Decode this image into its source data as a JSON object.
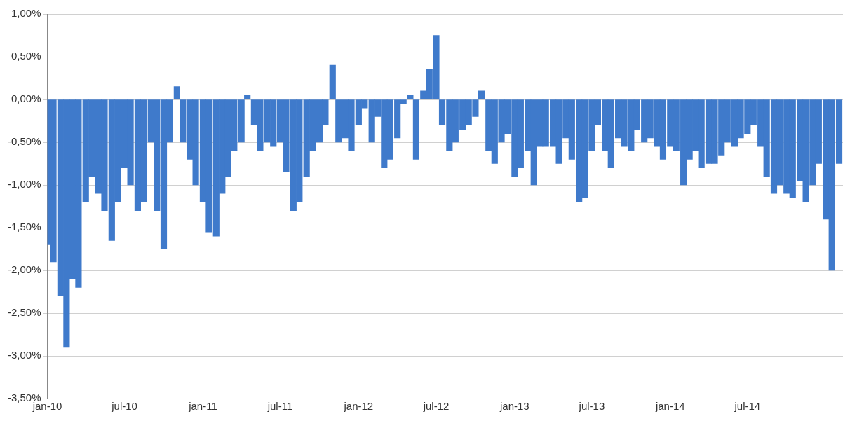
{
  "chart_data": {
    "type": "bar",
    "color": "#3f7acb",
    "x": [
      "2010-01-01",
      "2010-01-15",
      "2010-02-01",
      "2010-02-15",
      "2010-03-01",
      "2010-03-15",
      "2010-04-01",
      "2010-04-15",
      "2010-05-01",
      "2010-05-15",
      "2010-06-01",
      "2010-06-15",
      "2010-07-01",
      "2010-07-15",
      "2010-08-01",
      "2010-08-15",
      "2010-09-01",
      "2010-09-15",
      "2010-10-01",
      "2010-10-15",
      "2010-11-01",
      "2010-11-15",
      "2010-12-01",
      "2010-12-15",
      "2011-01-01",
      "2011-01-15",
      "2011-02-01",
      "2011-02-15",
      "2011-03-01",
      "2011-03-15",
      "2011-04-01",
      "2011-04-15",
      "2011-05-01",
      "2011-05-15",
      "2011-06-01",
      "2011-06-15",
      "2011-07-01",
      "2011-07-15",
      "2011-08-01",
      "2011-08-15",
      "2011-09-01",
      "2011-09-15",
      "2011-10-01",
      "2011-10-15",
      "2011-11-01",
      "2011-11-15",
      "2011-12-01",
      "2011-12-15",
      "2012-01-01",
      "2012-01-15",
      "2012-02-01",
      "2012-02-15",
      "2012-03-01",
      "2012-03-15",
      "2012-04-01",
      "2012-04-15",
      "2012-05-01",
      "2012-05-15",
      "2012-06-01",
      "2012-06-15",
      "2012-07-01",
      "2012-07-15",
      "2012-08-01",
      "2012-08-15",
      "2012-09-01",
      "2012-09-15",
      "2012-10-01",
      "2012-10-15",
      "2012-11-01",
      "2012-11-15",
      "2012-12-01",
      "2012-12-15",
      "2013-01-01",
      "2013-01-15",
      "2013-02-01",
      "2013-02-15",
      "2013-03-01",
      "2013-03-15",
      "2013-04-01",
      "2013-04-15",
      "2013-05-01",
      "2013-05-15",
      "2013-06-01",
      "2013-06-15",
      "2013-07-01",
      "2013-07-15",
      "2013-08-01",
      "2013-08-15",
      "2013-09-01",
      "2013-09-15",
      "2013-10-01",
      "2013-10-15",
      "2013-11-01",
      "2013-11-15",
      "2013-12-01",
      "2013-12-15",
      "2014-01-01",
      "2014-01-15",
      "2014-02-01",
      "2014-02-15",
      "2014-03-01",
      "2014-03-15",
      "2014-04-01",
      "2014-04-15",
      "2014-05-01",
      "2014-05-15",
      "2014-06-01",
      "2014-06-15",
      "2014-07-01",
      "2014-07-15",
      "2014-08-01",
      "2014-08-15",
      "2014-09-01",
      "2014-09-15",
      "2014-10-01",
      "2014-10-15",
      "2014-11-01",
      "2014-11-15",
      "2014-12-01",
      "2014-12-15",
      "2015-01-01",
      "2015-01-15",
      "2015-02-01"
    ],
    "values": [
      -1.7,
      -1.9,
      -2.3,
      -2.9,
      -2.1,
      -2.2,
      -1.2,
      -0.9,
      -1.1,
      -1.3,
      -1.65,
      -1.2,
      -0.8,
      -1.0,
      -1.3,
      -1.2,
      -0.5,
      -1.3,
      -1.75,
      -0.5,
      0.15,
      -0.5,
      -0.7,
      -1.0,
      -1.2,
      -1.55,
      -1.6,
      -1.1,
      -0.9,
      -0.6,
      -0.5,
      0.05,
      -0.3,
      -0.6,
      -0.5,
      -0.55,
      -0.5,
      -0.85,
      -1.3,
      -1.2,
      -0.9,
      -0.6,
      -0.5,
      -0.3,
      0.4,
      -0.5,
      -0.45,
      -0.6,
      -0.3,
      -0.1,
      -0.5,
      -0.2,
      -0.8,
      -0.7,
      -0.45,
      -0.05,
      0.05,
      -0.7,
      0.1,
      0.35,
      0.75,
      -0.3,
      -0.6,
      -0.5,
      -0.35,
      -0.3,
      -0.2,
      0.1,
      -0.6,
      -0.75,
      -0.5,
      -0.4,
      -0.9,
      -0.8,
      -0.6,
      -1.0,
      -0.55,
      -0.55,
      -0.55,
      -0.75,
      -0.45,
      -0.7,
      -1.2,
      -1.15,
      -0.6,
      -0.3,
      -0.6,
      -0.8,
      -0.45,
      -0.55,
      -0.6,
      -0.35,
      -0.5,
      -0.45,
      -0.55,
      -0.7,
      -0.55,
      -0.6,
      -1.0,
      -0.7,
      -0.6,
      -0.8,
      -0.75,
      -0.75,
      -0.65,
      -0.5,
      -0.55,
      -0.45,
      -0.4,
      -0.3,
      -0.55,
      -0.9,
      -1.1,
      -1.0,
      -1.1,
      -1.15,
      -0.95,
      -1.2,
      -1.0,
      -0.75,
      -1.4,
      -2.0,
      -0.75
    ],
    "xlim": [
      "2010-01-01",
      "2015-02-10"
    ],
    "xticks": [
      {
        "value": "2010-01-01",
        "label": "jan-10"
      },
      {
        "value": "2010-07-01",
        "label": "jul-10"
      },
      {
        "value": "2011-01-01",
        "label": "jan-11"
      },
      {
        "value": "2011-07-01",
        "label": "jul-11"
      },
      {
        "value": "2012-01-01",
        "label": "jan-12"
      },
      {
        "value": "2012-07-01",
        "label": "jul-12"
      },
      {
        "value": "2013-01-01",
        "label": "jan-13"
      },
      {
        "value": "2013-07-01",
        "label": "jul-13"
      },
      {
        "value": "2014-01-01",
        "label": "jan-14"
      },
      {
        "value": "2014-07-01",
        "label": "jul-14"
      }
    ],
    "ylim": [
      -3.5,
      1
    ],
    "yticks": [
      {
        "value": -3.5,
        "label": "-3,50%"
      },
      {
        "value": -3,
        "label": "-3,00%"
      },
      {
        "value": -2.5,
        "label": "-2,50%"
      },
      {
        "value": -2,
        "label": "-2,00%"
      },
      {
        "value": -1.5,
        "label": "-1,50%"
      },
      {
        "value": -1,
        "label": "-1,00%"
      },
      {
        "value": -0.5,
        "label": "-0,50%"
      },
      {
        "value": 0,
        "label": "0,00%"
      },
      {
        "value": 0.5,
        "label": "0,50%"
      },
      {
        "value": 1,
        "label": "1,00%"
      }
    ],
    "grid": "y",
    "legend": false
  }
}
